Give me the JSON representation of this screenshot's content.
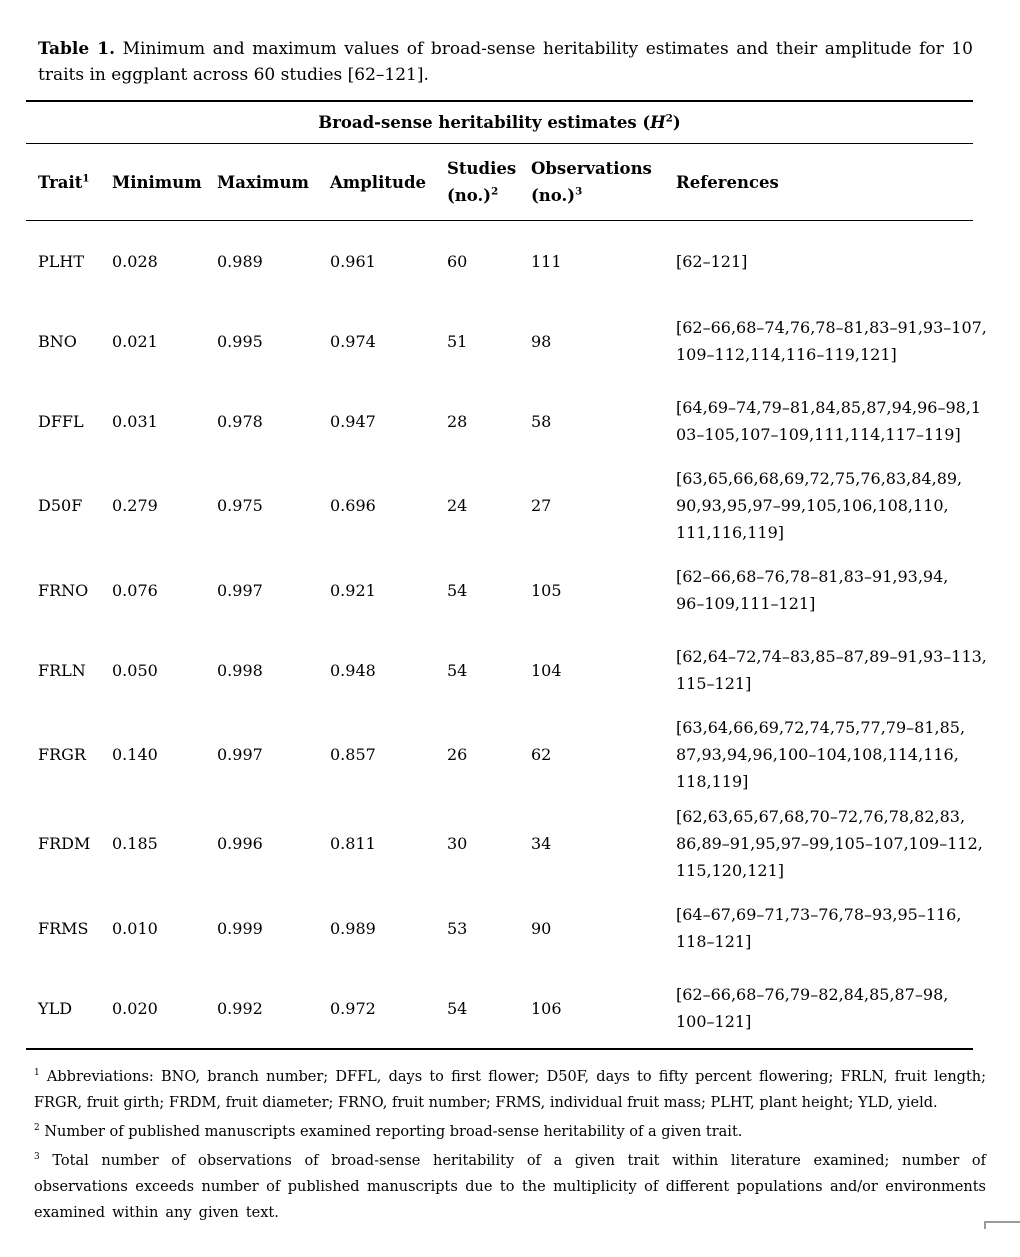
{
  "caption": {
    "label": "Table 1.",
    "text": " Minimum and maximum values of broad-sense heritability estimates and their amplitude for 10 traits in eggplant across 60 studies [62–121]."
  },
  "table": {
    "spanning_header": {
      "prefix": "Broad-sense heritability estimates (",
      "symbol": "H",
      "symbol_sup": "2",
      "suffix": ")"
    },
    "columns": [
      {
        "id": "trait",
        "label": "Trait",
        "sup": "1"
      },
      {
        "id": "minimum",
        "label": "Minimum"
      },
      {
        "id": "maximum",
        "label": "Maximum"
      },
      {
        "id": "amplitude",
        "label": "Amplitude"
      },
      {
        "id": "studies",
        "label": "Studies",
        "line2": "(no.)",
        "line2_sup": "2"
      },
      {
        "id": "observations",
        "label": "Observations",
        "line2": "(no.)",
        "line2_sup": "3"
      },
      {
        "id": "references",
        "label": "References"
      }
    ],
    "rows": [
      {
        "trait": "PLHT",
        "minimum": "0.028",
        "maximum": "0.989",
        "amplitude": "0.961",
        "studies": "60",
        "observations": "111",
        "references": [
          "[62–121]"
        ]
      },
      {
        "trait": "BNO",
        "minimum": "0.021",
        "maximum": "0.995",
        "amplitude": "0.974",
        "studies": "51",
        "observations": "98",
        "references": [
          "[62–66,68–74,76,78–81,83–91,93–107,",
          "109–112,114,116–119,121]"
        ]
      },
      {
        "trait": "DFFL",
        "minimum": "0.031",
        "maximum": "0.978",
        "amplitude": "0.947",
        "studies": "28",
        "observations": "58",
        "references": [
          "[64,69–74,79–81,84,85,87,94,96–98,1",
          "03–105,107–109,111,114,117–119]"
        ]
      },
      {
        "trait": "D50F",
        "minimum": "0.279",
        "maximum": "0.975",
        "amplitude": "0.696",
        "studies": "24",
        "observations": "27",
        "references": [
          "[63,65,66,68,69,72,75,76,83,84,89,",
          "90,93,95,97–99,105,106,108,110,",
          "111,116,119]"
        ]
      },
      {
        "trait": "FRNO",
        "minimum": "0.076",
        "maximum": "0.997",
        "amplitude": "0.921",
        "studies": "54",
        "observations": "105",
        "references": [
          "[62–66,68–76,78–81,83–91,93,94,",
          "96–109,111–121]"
        ]
      },
      {
        "trait": "FRLN",
        "minimum": "0.050",
        "maximum": "0.998",
        "amplitude": "0.948",
        "studies": "54",
        "observations": "104",
        "references": [
          "[62,64–72,74–83,85–87,89–91,93–113,",
          "115–121]"
        ]
      },
      {
        "trait": "FRGR",
        "minimum": "0.140",
        "maximum": "0.997",
        "amplitude": "0.857",
        "studies": "26",
        "observations": "62",
        "references": [
          "[63,64,66,69,72,74,75,77,79–81,85,",
          "87,93,94,96,100–104,108,114,116,",
          "118,119]"
        ]
      },
      {
        "trait": "FRDM",
        "minimum": "0.185",
        "maximum": "0.996",
        "amplitude": "0.811",
        "studies": "30",
        "observations": "34",
        "references": [
          "[62,63,65,67,68,70–72,76,78,82,83,",
          "86,89–91,95,97–99,105–107,109–112,",
          "115,120,121]"
        ]
      },
      {
        "trait": "FRMS",
        "minimum": "0.010",
        "maximum": "0.999",
        "amplitude": "0.989",
        "studies": "53",
        "observations": "90",
        "references": [
          "[64–67,69–71,73–76,78–93,95–116,",
          "118–121]"
        ]
      },
      {
        "trait": "YLD",
        "minimum": "0.020",
        "maximum": "0.992",
        "amplitude": "0.972",
        "studies": "54",
        "observations": "106",
        "references": [
          "[62–66,68–76,79–82,84,85,87–98,",
          "100–121]"
        ]
      }
    ]
  },
  "footnotes": [
    {
      "sup": "1",
      "text": "Abbreviations: BNO, branch number; DFFL, days to first flower; D50F, days to fifty percent flowering; FRLN, fruit length; FRGR, fruit girth; FRDM, fruit diameter; FRNO, fruit number; FRMS, individual fruit mass; PLHT, plant height; YLD, yield."
    },
    {
      "sup": "2",
      "text": "Number of published manuscripts examined reporting broad-sense heritability of a given trait."
    },
    {
      "sup": "3",
      "text": "Total number of observations of broad-sense heritability of a given trait within literature examined; number of observations exceeds number of published manuscripts due to the multiplicity of different populations and/or environments examined within any given text."
    }
  ]
}
